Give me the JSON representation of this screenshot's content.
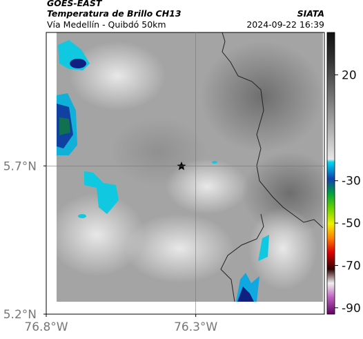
{
  "header": {
    "satellite": "GOES-EAST",
    "product": "Temperatura de Brillo CH13",
    "region": "Vía Medellín - Quibdó 50km",
    "source": "SIATA",
    "datetime": "2024-09-22 16:39"
  },
  "map": {
    "lonlim": [
      -76.8,
      -75.87
    ],
    "latlim": [
      5.2,
      6.15
    ],
    "lat_ticks": [
      {
        "value": 5.7,
        "label": "5.7°N"
      },
      {
        "value": 5.2,
        "label": "5.2°N"
      }
    ],
    "lon_ticks": [
      {
        "value": -76.8,
        "label": "76.8°W"
      },
      {
        "value": -76.3,
        "label": "76.3°W"
      }
    ]
  },
  "colorbar": {
    "lim": [
      40,
      -93
    ],
    "ticks": [
      20,
      -30,
      -50,
      -70,
      -90
    ]
  }
}
